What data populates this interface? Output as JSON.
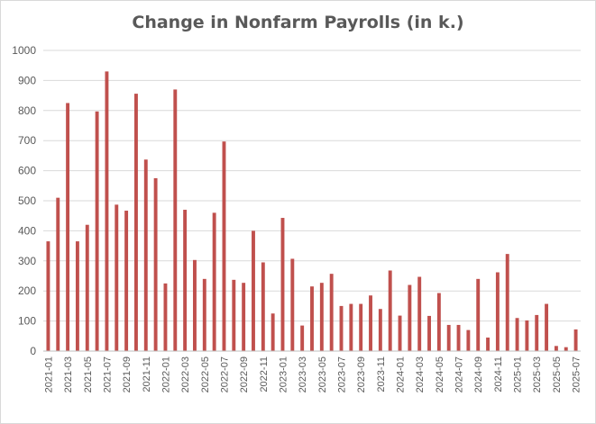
{
  "chart_data": {
    "type": "bar",
    "title": "Change in Nonfarm Payrolls (in k.)",
    "xlabel": "",
    "ylabel": "",
    "ylim": [
      0,
      1000
    ],
    "yticks": [
      0,
      100,
      200,
      300,
      400,
      500,
      600,
      700,
      800,
      900,
      1000
    ],
    "grid": true,
    "bar_color": "#C0504D",
    "categories": [
      "2021-01",
      "2021-02",
      "2021-03",
      "2021-04",
      "2021-05",
      "2021-06",
      "2021-07",
      "2021-08",
      "2021-09",
      "2021-10",
      "2021-11",
      "2021-12",
      "2022-01",
      "2022-02",
      "2022-03",
      "2022-04",
      "2022-05",
      "2022-06",
      "2022-07",
      "2022-08",
      "2022-09",
      "2022-10",
      "2022-11",
      "2022-12",
      "2023-01",
      "2023-02",
      "2023-03",
      "2023-04",
      "2023-05",
      "2023-06",
      "2023-07",
      "2023-08",
      "2023-09",
      "2023-10",
      "2023-11",
      "2023-12",
      "2024-01",
      "2024-02",
      "2024-03",
      "2024-04",
      "2024-05",
      "2024-06",
      "2024-07",
      "2024-08",
      "2024-09",
      "2024-10",
      "2024-11",
      "2024-12",
      "2025-01",
      "2025-02",
      "2025-03",
      "2025-04",
      "2025-05",
      "2025-06",
      "2025-07"
    ],
    "tick_labels": [
      "2021-01",
      "2021-03",
      "2021-05",
      "2021-07",
      "2021-09",
      "2021-11",
      "2022-01",
      "2022-03",
      "2022-05",
      "2022-07",
      "2022-09",
      "2022-11",
      "2023-01",
      "2023-03",
      "2023-05",
      "2023-07",
      "2023-09",
      "2023-11",
      "2024-01",
      "2024-03",
      "2024-05",
      "2024-07",
      "2024-09",
      "2024-11",
      "2025-01",
      "2025-03",
      "2025-05",
      "2025-07"
    ],
    "values": [
      365,
      510,
      825,
      365,
      420,
      797,
      930,
      487,
      467,
      856,
      637,
      575,
      225,
      870,
      470,
      303,
      240,
      460,
      697,
      237,
      227,
      400,
      295,
      125,
      443,
      307,
      85,
      215,
      227,
      257,
      150,
      157,
      157,
      185,
      140,
      268,
      118,
      220,
      247,
      117,
      193,
      87,
      87,
      70,
      240,
      45,
      262,
      323,
      110,
      102,
      120,
      157,
      17,
      13,
      72
    ]
  }
}
